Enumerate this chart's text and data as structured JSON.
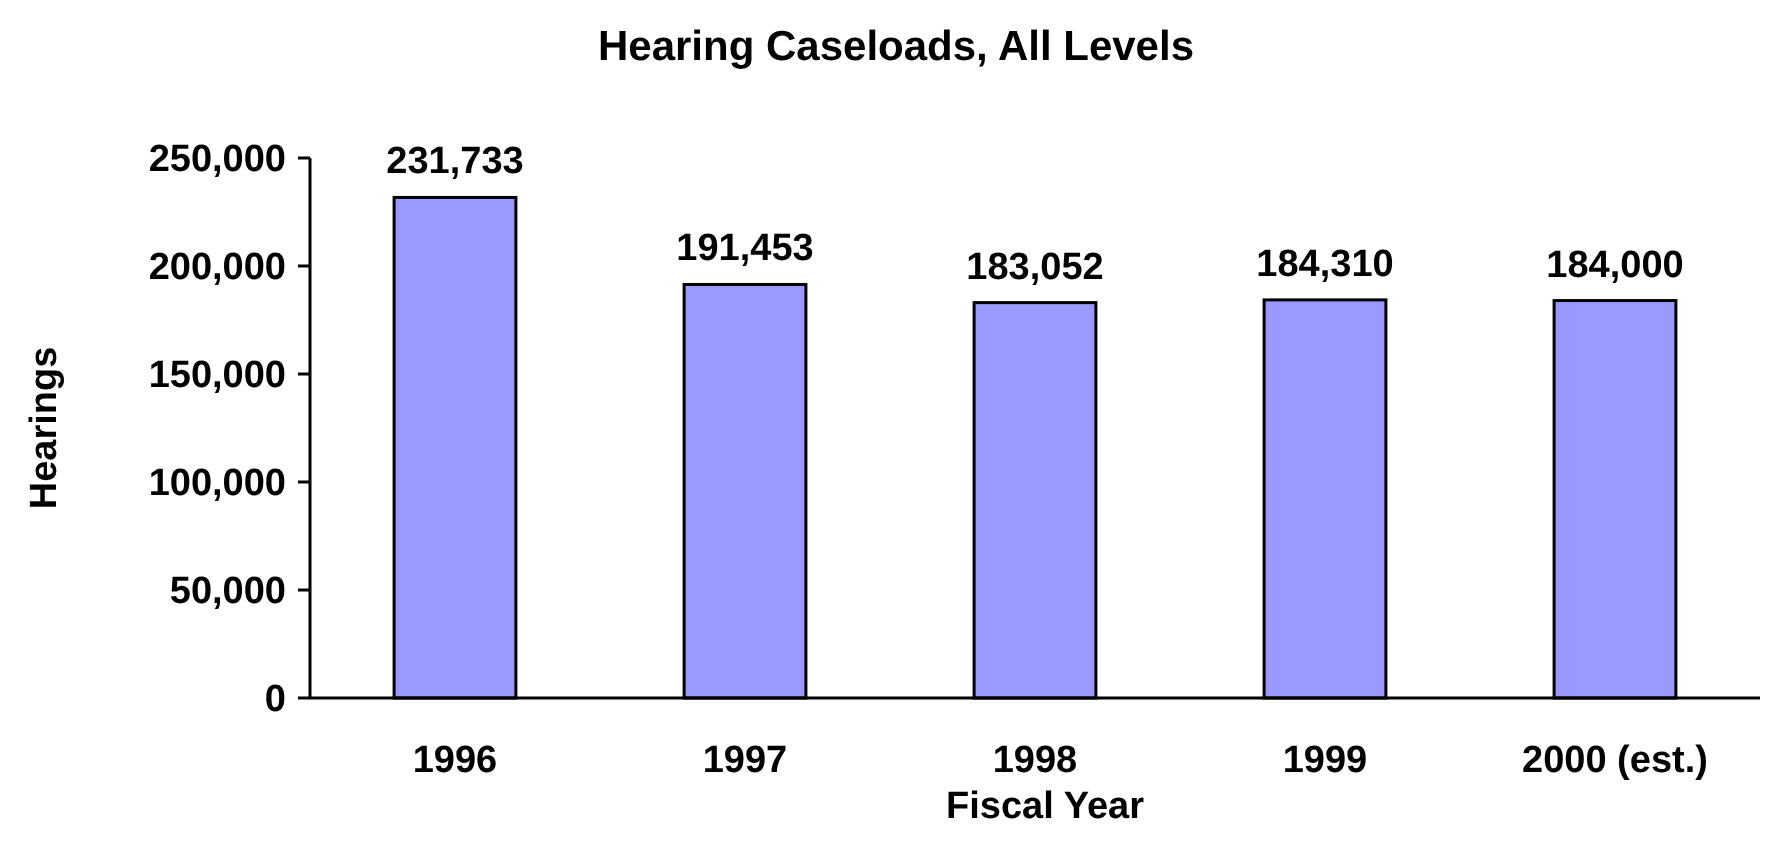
{
  "chart_data": {
    "type": "bar",
    "title": "Hearing Caseloads, All Levels",
    "xlabel": "Fiscal Year",
    "ylabel": "Hearings",
    "categories": [
      "1996",
      "1997",
      "1998",
      "1999",
      "2000 (est.)"
    ],
    "values": [
      231733,
      191453,
      183052,
      184310,
      184000
    ],
    "color": "#9999ff",
    "value_labels": [
      "231,733",
      "191,453",
      "183,052",
      "184,310",
      "184,000"
    ],
    "ylim": [
      0,
      250000
    ],
    "yticks": [
      {
        "value": 0,
        "label": "0"
      },
      {
        "value": 50000,
        "label": "50,000"
      },
      {
        "value": 100000,
        "label": "100,000"
      },
      {
        "value": 150000,
        "label": "150,000"
      },
      {
        "value": 200000,
        "label": "200,000"
      },
      {
        "value": 250000,
        "label": "250,000"
      }
    ],
    "grid": false
  }
}
